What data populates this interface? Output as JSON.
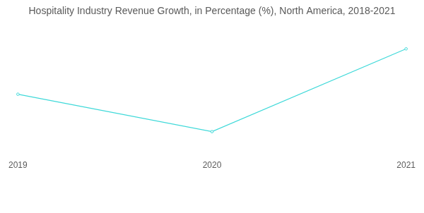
{
  "chart_data": {
    "type": "line",
    "title": "Hospitality Industry Revenue Growth, in Percentage (%), North America, 2018-2021",
    "categories": [
      "2019",
      "2020",
      "2021"
    ],
    "values": [
      51,
      18,
      91
    ],
    "color": "#3fd9d9",
    "marker": "circle",
    "ylim": [
      0,
      100
    ],
    "grid": false,
    "tick_labels": "x"
  }
}
